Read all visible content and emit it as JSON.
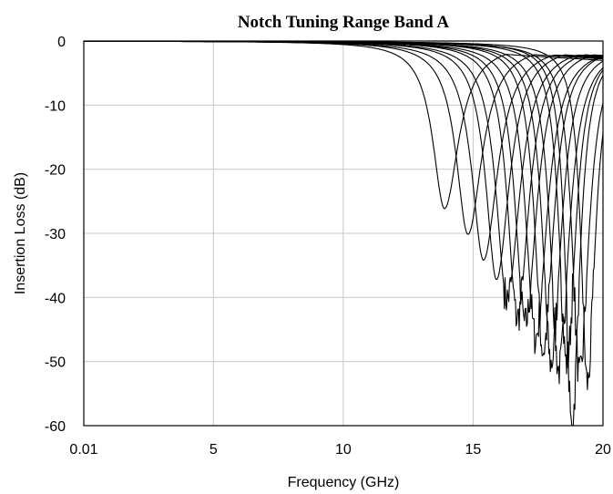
{
  "chart_data": {
    "type": "line",
    "title": "Notch Tuning Range Band A",
    "xlabel": "Frequency (GHz)",
    "ylabel": "Insertion Loss (dB)",
    "xlim": [
      0.01,
      20
    ],
    "ylim": [
      -60,
      0
    ],
    "x_ticks": [
      0.01,
      5,
      10,
      15,
      20
    ],
    "x_tick_labels": [
      "0.01",
      "5",
      "10",
      "15",
      "20"
    ],
    "y_ticks": [
      0,
      -10,
      -20,
      -30,
      -40,
      -50,
      -60
    ],
    "y_tick_labels": [
      "0",
      "-10",
      "-20",
      "-30",
      "-40",
      "-50",
      "-60"
    ],
    "grid": true,
    "line_color": "#000000",
    "series": [
      {
        "notch_center_ghz": 13.9,
        "notch_depth_db": -26,
        "width_ghz": 0.55
      },
      {
        "notch_center_ghz": 14.8,
        "notch_depth_db": -30,
        "width_ghz": 0.55
      },
      {
        "notch_center_ghz": 15.4,
        "notch_depth_db": -34,
        "width_ghz": 0.55
      },
      {
        "notch_center_ghz": 15.9,
        "notch_depth_db": -37,
        "width_ghz": 0.5
      },
      {
        "notch_center_ghz": 16.3,
        "notch_depth_db": -40,
        "width_ghz": 0.5
      },
      {
        "notch_center_ghz": 16.7,
        "notch_depth_db": -43,
        "width_ghz": 0.45
      },
      {
        "notch_center_ghz": 17.0,
        "notch_depth_db": -44,
        "width_ghz": 0.45
      },
      {
        "notch_center_ghz": 17.4,
        "notch_depth_db": -46,
        "width_ghz": 0.45
      },
      {
        "notch_center_ghz": 17.7,
        "notch_depth_db": -48,
        "width_ghz": 0.4
      },
      {
        "notch_center_ghz": 18.0,
        "notch_depth_db": -50,
        "width_ghz": 0.4
      },
      {
        "notch_center_ghz": 18.3,
        "notch_depth_db": -51,
        "width_ghz": 0.4
      },
      {
        "notch_center_ghz": 18.6,
        "notch_depth_db": -50,
        "width_ghz": 0.35
      },
      {
        "notch_center_ghz": 18.8,
        "notch_depth_db": -60,
        "width_ghz": 0.3
      },
      {
        "notch_center_ghz": 19.1,
        "notch_depth_db": -52,
        "width_ghz": 0.35
      },
      {
        "notch_center_ghz": 19.4,
        "notch_depth_db": -53,
        "width_ghz": 0.3
      }
    ]
  }
}
